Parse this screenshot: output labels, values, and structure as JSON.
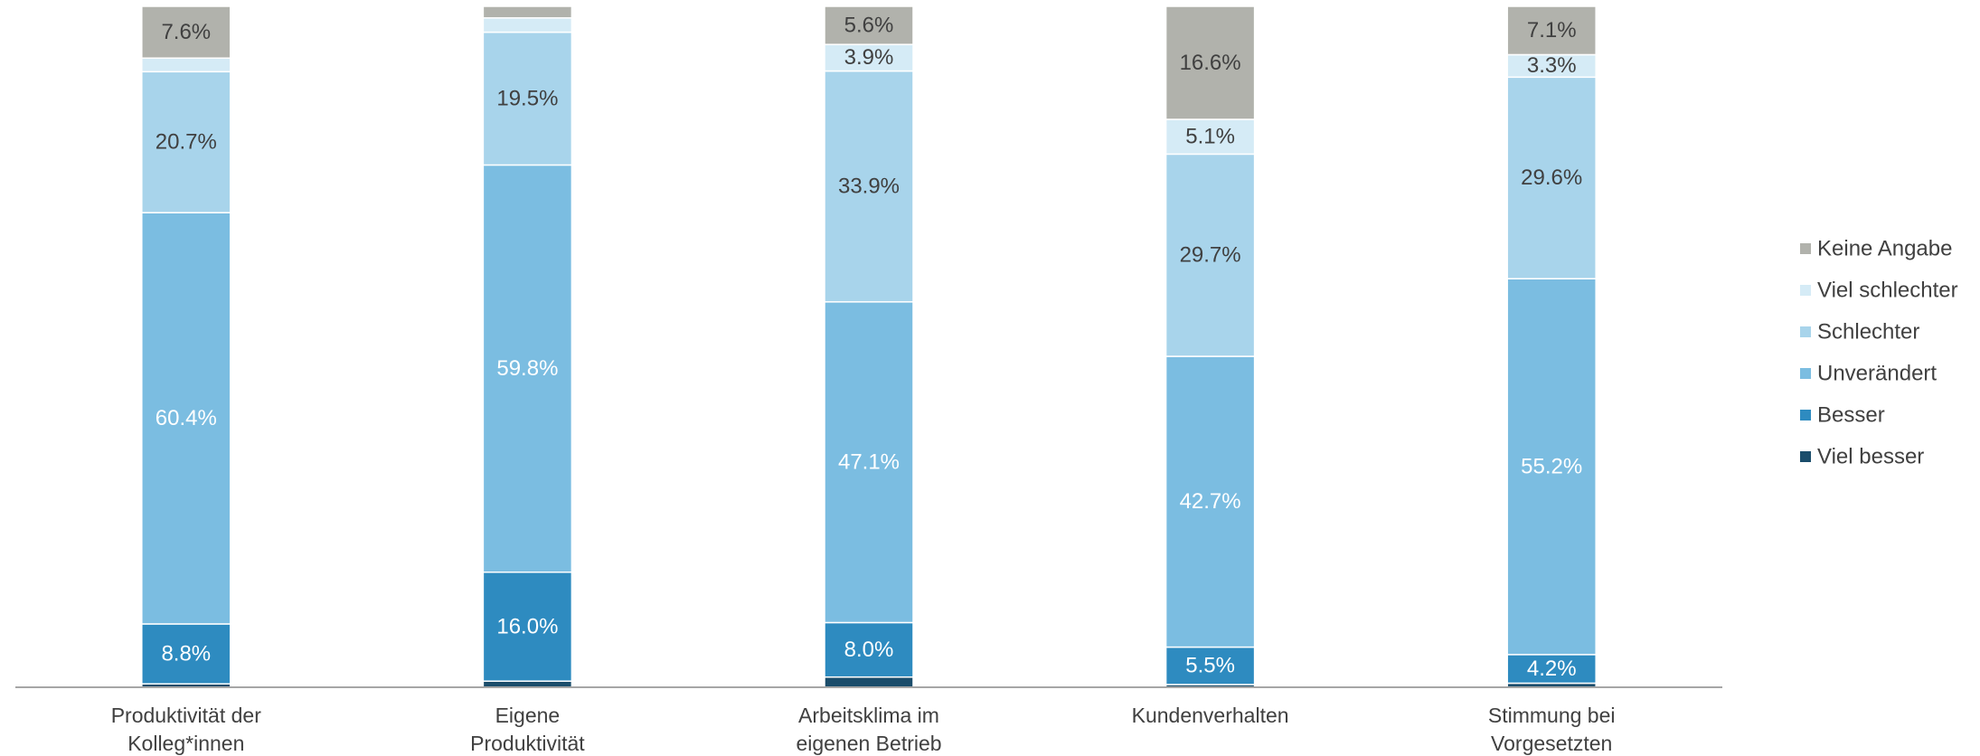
{
  "chart_data": {
    "type": "stacked_bar",
    "categories": [
      "Produktivität der\nKolleg*innen",
      "Eigene\nProduktivität",
      "Arbeitsklima im\neigenen Betrieb",
      "Kundenverhalten",
      "Stimmung bei\nVorgesetzten"
    ],
    "ylim": [
      0,
      100
    ],
    "legend": "right",
    "series": [
      {
        "name": "Viel besser",
        "color": "#1b4d6b",
        "values": [
          0.5,
          0.9,
          1.5,
          0.4,
          0.6
        ],
        "value_labels": [
          null,
          null,
          null,
          null,
          null
        ]
      },
      {
        "name": "Besser",
        "color": "#2e8bc0",
        "values": [
          8.8,
          16.0,
          8.0,
          5.5,
          4.2
        ],
        "value_labels": [
          "8.8%",
          "16.0%",
          "8.0%",
          "5.5%",
          "4.2%"
        ]
      },
      {
        "name": "Unverändert",
        "color": "#7bbde1",
        "values": [
          60.4,
          59.8,
          47.1,
          42.7,
          55.2
        ],
        "value_labels": [
          "60.4%",
          "59.8%",
          "47.1%",
          "42.7%",
          "55.2%"
        ]
      },
      {
        "name": "Schlechter",
        "color": "#a8d4eb",
        "values": [
          20.7,
          19.5,
          33.9,
          29.7,
          29.6
        ],
        "value_labels": [
          "20.7%",
          "19.5%",
          "33.9%",
          "29.7%",
          "29.6%"
        ]
      },
      {
        "name": "Viel schlechter",
        "color": "#d5ebf6",
        "values": [
          2.0,
          2.1,
          3.9,
          5.1,
          3.3
        ],
        "value_labels": [
          null,
          null,
          "3.9%",
          "5.1%",
          "3.3%"
        ]
      },
      {
        "name": "Keine Angabe",
        "color": "#b1b2ac",
        "values": [
          7.6,
          1.7,
          5.6,
          16.6,
          7.1
        ],
        "value_labels": [
          "7.6%",
          null,
          "5.6%",
          "16.6%",
          "7.1%"
        ]
      }
    ]
  }
}
